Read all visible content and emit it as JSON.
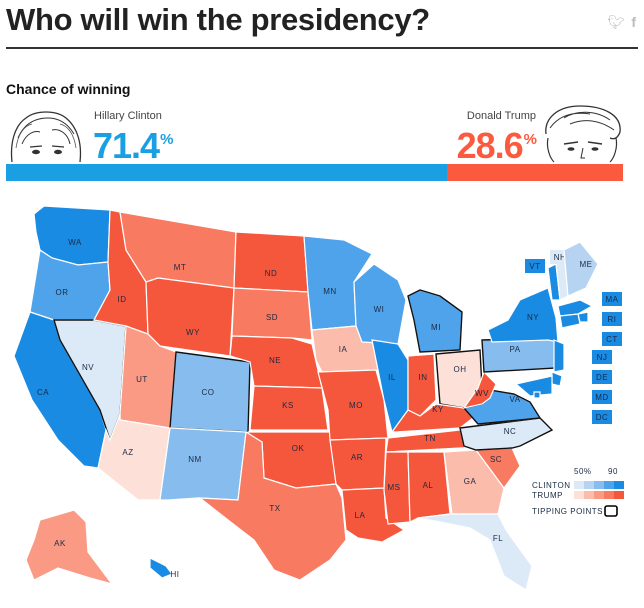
{
  "page": {
    "title": "Who will win the presidency?",
    "subtitle": "Chance of winning",
    "social_icons": [
      "twitter-icon",
      "facebook-icon"
    ]
  },
  "candidates": {
    "clinton": {
      "name": "Hillary Clinton",
      "value": "71.4",
      "unit": "%",
      "color": "#1a9fe3"
    },
    "trump": {
      "name": "Donald Trump",
      "value": "28.6",
      "unit": "%",
      "color": "#fb5a3f"
    }
  },
  "legend": {
    "scale_low": "50%",
    "scale_high": "90",
    "clinton_label": "CLINTON",
    "trump_label": "TRUMP",
    "tipping_label": "TIPPING POINTS",
    "clinton_colors": [
      "#dce9f7",
      "#b6d4f2",
      "#86bdee",
      "#4fa3ea",
      "#1a8be3"
    ],
    "trump_colors": [
      "#fde1d9",
      "#fcbcab",
      "#fa9a84",
      "#f87a60",
      "#f5573d"
    ]
  },
  "chart_data": {
    "type": "map",
    "title": "Who will win the presidency?",
    "overall": [
      {
        "name": "Hillary Clinton",
        "value": 71.4
      },
      {
        "name": "Donald Trump",
        "value": 28.6
      }
    ],
    "states": [
      {
        "abbr": "WA",
        "leaning": "clinton",
        "tier": 4
      },
      {
        "abbr": "OR",
        "leaning": "clinton",
        "tier": 3
      },
      {
        "abbr": "CA",
        "leaning": "clinton",
        "tier": 4
      },
      {
        "abbr": "NV",
        "leaning": "clinton",
        "tier": 0,
        "tipping_point": true
      },
      {
        "abbr": "ID",
        "leaning": "trump",
        "tier": 4
      },
      {
        "abbr": "MT",
        "leaning": "trump",
        "tier": 3
      },
      {
        "abbr": "WY",
        "leaning": "trump",
        "tier": 4
      },
      {
        "abbr": "UT",
        "leaning": "trump",
        "tier": 2
      },
      {
        "abbr": "AZ",
        "leaning": "trump",
        "tier": 0
      },
      {
        "abbr": "CO",
        "leaning": "clinton",
        "tier": 2,
        "tipping_point": true
      },
      {
        "abbr": "NM",
        "leaning": "clinton",
        "tier": 2
      },
      {
        "abbr": "ND",
        "leaning": "trump",
        "tier": 4
      },
      {
        "abbr": "SD",
        "leaning": "trump",
        "tier": 3
      },
      {
        "abbr": "NE",
        "leaning": "trump",
        "tier": 4
      },
      {
        "abbr": "KS",
        "leaning": "trump",
        "tier": 4
      },
      {
        "abbr": "OK",
        "leaning": "trump",
        "tier": 4
      },
      {
        "abbr": "TX",
        "leaning": "trump",
        "tier": 3
      },
      {
        "abbr": "MN",
        "leaning": "clinton",
        "tier": 3
      },
      {
        "abbr": "IA",
        "leaning": "trump",
        "tier": 1
      },
      {
        "abbr": "MO",
        "leaning": "trump",
        "tier": 4
      },
      {
        "abbr": "AR",
        "leaning": "trump",
        "tier": 4
      },
      {
        "abbr": "LA",
        "leaning": "trump",
        "tier": 4
      },
      {
        "abbr": "WI",
        "leaning": "clinton",
        "tier": 3
      },
      {
        "abbr": "IL",
        "leaning": "clinton",
        "tier": 4
      },
      {
        "abbr": "MI",
        "leaning": "clinton",
        "tier": 3,
        "tipping_point": true
      },
      {
        "abbr": "IN",
        "leaning": "trump",
        "tier": 4
      },
      {
        "abbr": "OH",
        "leaning": "trump",
        "tier": 0,
        "tipping_point": true
      },
      {
        "abbr": "KY",
        "leaning": "trump",
        "tier": 4
      },
      {
        "abbr": "TN",
        "leaning": "trump",
        "tier": 4
      },
      {
        "abbr": "MS",
        "leaning": "trump",
        "tier": 4
      },
      {
        "abbr": "AL",
        "leaning": "trump",
        "tier": 4
      },
      {
        "abbr": "GA",
        "leaning": "trump",
        "tier": 1
      },
      {
        "abbr": "SC",
        "leaning": "trump",
        "tier": 3
      },
      {
        "abbr": "NC",
        "leaning": "clinton",
        "tier": 0,
        "tipping_point": true
      },
      {
        "abbr": "FL",
        "leaning": "clinton",
        "tier": 0
      },
      {
        "abbr": "VA",
        "leaning": "clinton",
        "tier": 3,
        "tipping_point": true
      },
      {
        "abbr": "WV",
        "leaning": "trump",
        "tier": 4
      },
      {
        "abbr": "PA",
        "leaning": "clinton",
        "tier": 2,
        "tipping_point": true
      },
      {
        "abbr": "NY",
        "leaning": "clinton",
        "tier": 4
      },
      {
        "abbr": "VT",
        "leaning": "clinton",
        "tier": 4
      },
      {
        "abbr": "NH",
        "leaning": "clinton",
        "tier": 0
      },
      {
        "abbr": "ME",
        "leaning": "clinton",
        "tier": 1
      },
      {
        "abbr": "MA",
        "leaning": "clinton",
        "tier": 4
      },
      {
        "abbr": "RI",
        "leaning": "clinton",
        "tier": 4
      },
      {
        "abbr": "CT",
        "leaning": "clinton",
        "tier": 4
      },
      {
        "abbr": "NJ",
        "leaning": "clinton",
        "tier": 4
      },
      {
        "abbr": "DE",
        "leaning": "clinton",
        "tier": 4
      },
      {
        "abbr": "MD",
        "leaning": "clinton",
        "tier": 4
      },
      {
        "abbr": "DC",
        "leaning": "clinton",
        "tier": 4
      },
      {
        "abbr": "AK",
        "leaning": "trump",
        "tier": 2
      },
      {
        "abbr": "HI",
        "leaning": "clinton",
        "tier": 4
      }
    ]
  }
}
